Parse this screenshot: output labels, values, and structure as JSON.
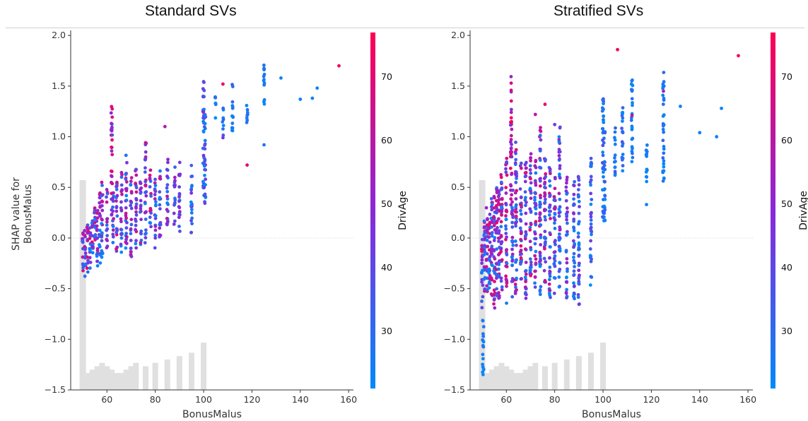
{
  "panels": [
    {
      "title": "Standard SVs"
    },
    {
      "title": "Stratified SVs"
    }
  ],
  "colors": {
    "low": "#008afb",
    "mid": "#8a28d9",
    "high": "#ff0052",
    "histogram": "#e0e0e0",
    "zero_line": "#dddddd"
  },
  "chart_data": [
    {
      "type": "scatter",
      "title": "Standard SVs",
      "xlabel": "BonusMalus",
      "ylabel": "SHAP value for\nBonusMalus",
      "xlim": [
        45,
        162
      ],
      "ylim": [
        -1.5,
        2.05
      ],
      "x_ticks": [
        60,
        80,
        100,
        120,
        140,
        160
      ],
      "y_ticks": [
        -1.5,
        -1.0,
        -0.5,
        0.0,
        0.5,
        1.0,
        1.5,
        2.0
      ],
      "colorbar": {
        "label": "DrivAge",
        "ticks": [
          30,
          40,
          50,
          60,
          70
        ],
        "range": [
          21,
          77
        ]
      },
      "histogram": {
        "x": [
          50,
          52,
          54,
          56,
          58,
          60,
          62,
          64,
          66,
          68,
          70,
          72,
          76,
          80,
          85,
          90,
          95,
          100
        ],
        "heights": [
          0.62,
          0.05,
          0.06,
          0.07,
          0.08,
          0.07,
          0.06,
          0.05,
          0.05,
          0.06,
          0.07,
          0.08,
          0.07,
          0.08,
          0.09,
          0.1,
          0.11,
          0.14
        ]
      },
      "series": [
        {
          "x": 50,
          "y_range": [
            -0.4,
            0.05
          ],
          "age_range": [
            21,
            77
          ]
        },
        {
          "x": 51,
          "y_range": [
            -0.38,
            0.1
          ],
          "age_range": [
            21,
            77
          ]
        },
        {
          "x": 52,
          "y_range": [
            -0.34,
            0.15
          ],
          "age_range": [
            21,
            77
          ]
        },
        {
          "x": 53,
          "y_range": [
            -0.3,
            0.2
          ],
          "age_range": [
            21,
            75
          ]
        },
        {
          "x": 54,
          "y_range": [
            -0.2,
            0.25
          ],
          "age_range": [
            21,
            70
          ]
        },
        {
          "x": 55,
          "y_range": [
            -0.15,
            0.3
          ],
          "age_range": [
            21,
            70
          ]
        },
        {
          "x": 56,
          "y_range": [
            -0.3,
            0.3
          ],
          "age_range": [
            21,
            68
          ]
        },
        {
          "x": 57,
          "y_range": [
            -0.25,
            0.45
          ],
          "age_range": [
            21,
            72
          ]
        },
        {
          "x": 58,
          "y_range": [
            -0.2,
            0.6
          ],
          "age_range": [
            21,
            74
          ]
        },
        {
          "x": 60,
          "y_range": [
            -0.1,
            0.5
          ],
          "age_range": [
            21,
            70
          ]
        },
        {
          "x": 62,
          "y_range": [
            0.2,
            1.3
          ],
          "age_range": [
            40,
            77
          ]
        },
        {
          "x": 62.5,
          "y_range": [
            -0.05,
            0.45
          ],
          "age_range": [
            21,
            60
          ]
        },
        {
          "x": 64,
          "y_range": [
            -0.2,
            0.6
          ],
          "age_range": [
            21,
            72
          ]
        },
        {
          "x": 66,
          "y_range": [
            -0.15,
            0.7
          ],
          "age_range": [
            21,
            74
          ]
        },
        {
          "x": 68,
          "y_range": [
            -0.1,
            0.9
          ],
          "age_range": [
            21,
            74
          ]
        },
        {
          "x": 70,
          "y_range": [
            -0.2,
            0.65
          ],
          "age_range": [
            21,
            70
          ]
        },
        {
          "x": 72,
          "y_range": [
            -0.15,
            0.7
          ],
          "age_range": [
            21,
            72
          ]
        },
        {
          "x": 74,
          "y_range": [
            -0.1,
            0.6
          ],
          "age_range": [
            21,
            70
          ]
        },
        {
          "x": 76,
          "y_range": [
            -0.05,
            1.0
          ],
          "age_range": [
            21,
            68
          ]
        },
        {
          "x": 78,
          "y_range": [
            0.1,
            0.7
          ],
          "age_range": [
            21,
            72
          ]
        },
        {
          "x": 80,
          "y_range": [
            -0.1,
            0.6
          ],
          "age_range": [
            21,
            70
          ]
        },
        {
          "x": 82,
          "y_range": [
            0.0,
            0.7
          ],
          "age_range": [
            21,
            65
          ]
        },
        {
          "x": 85,
          "y_range": [
            0.05,
            0.8
          ],
          "age_range": [
            21,
            60
          ]
        },
        {
          "x": 88,
          "y_range": [
            0.1,
            0.7
          ],
          "age_range": [
            21,
            58
          ]
        },
        {
          "x": 90,
          "y_range": [
            0.05,
            0.75
          ],
          "age_range": [
            21,
            55
          ]
        },
        {
          "x": 95,
          "y_range": [
            0.05,
            0.75
          ],
          "age_range": [
            21,
            50
          ]
        },
        {
          "x": 100,
          "y_range": [
            0.35,
            1.55
          ],
          "age_range": [
            21,
            50
          ]
        },
        {
          "x": 100.6,
          "y_range": [
            0.3,
            1.25
          ],
          "age_range": [
            21,
            45
          ]
        },
        {
          "x": 105,
          "y_range": [
            1.15,
            1.4
          ],
          "age_range": [
            21,
            35
          ]
        },
        {
          "x": 108,
          "y_range": [
            1.0,
            1.3
          ],
          "age_range": [
            21,
            35
          ]
        },
        {
          "x": 112,
          "y_range": [
            1.05,
            1.55
          ],
          "age_range": [
            21,
            35
          ]
        },
        {
          "x": 118,
          "y_range": [
            1.05,
            1.35
          ],
          "age_range": [
            21,
            30
          ]
        },
        {
          "x": 125,
          "y_range": [
            1.3,
            1.75
          ],
          "age_range": [
            21,
            30
          ]
        }
      ],
      "extras": [
        {
          "x": 156,
          "y": 1.7,
          "age": 76
        },
        {
          "x": 132,
          "y": 1.58,
          "age": 24
        },
        {
          "x": 140,
          "y": 1.37,
          "age": 24
        },
        {
          "x": 145,
          "y": 1.38,
          "age": 24
        },
        {
          "x": 147,
          "y": 1.48,
          "age": 24
        },
        {
          "x": 118,
          "y": 0.72,
          "age": 70
        },
        {
          "x": 125,
          "y": 0.92,
          "age": 28
        },
        {
          "x": 108,
          "y": 1.52,
          "age": 72
        },
        {
          "x": 84,
          "y": 1.1,
          "age": 58
        },
        {
          "x": 108,
          "y": 0.99,
          "age": 45
        }
      ]
    },
    {
      "type": "scatter",
      "title": "Stratified SVs",
      "xlabel": "BonusMalus",
      "ylabel": "",
      "xlim": [
        45,
        162
      ],
      "ylim": [
        -1.5,
        2.05
      ],
      "x_ticks": [
        60,
        80,
        100,
        120,
        140,
        160
      ],
      "y_ticks": [
        -1.5,
        -1.0,
        -0.5,
        0.0,
        0.5,
        1.0,
        1.5,
        2.0
      ],
      "colorbar": {
        "label": "DrivAge",
        "ticks": [
          30,
          40,
          50,
          60,
          70
        ],
        "range": [
          21,
          77
        ]
      },
      "histogram": {
        "x": [
          50,
          52,
          54,
          56,
          58,
          60,
          62,
          64,
          66,
          68,
          70,
          72,
          76,
          80,
          85,
          90,
          95,
          100
        ],
        "heights": [
          0.62,
          0.05,
          0.06,
          0.07,
          0.08,
          0.07,
          0.06,
          0.05,
          0.05,
          0.06,
          0.07,
          0.08,
          0.07,
          0.08,
          0.09,
          0.1,
          0.11,
          0.14
        ]
      },
      "series": [
        {
          "x": 50,
          "y_range": [
            -0.7,
            0.0
          ],
          "age_range": [
            21,
            77
          ]
        },
        {
          "x": 50.4,
          "y_range": [
            -1.35,
            -0.75
          ],
          "age_range": [
            21,
            28
          ]
        },
        {
          "x": 51,
          "y_range": [
            -0.6,
            0.25
          ],
          "age_range": [
            21,
            72
          ]
        },
        {
          "x": 52,
          "y_range": [
            -0.55,
            0.3
          ],
          "age_range": [
            21,
            70
          ]
        },
        {
          "x": 53,
          "y_range": [
            -0.5,
            0.35
          ],
          "age_range": [
            21,
            72
          ]
        },
        {
          "x": 54,
          "y_range": [
            -0.6,
            0.4
          ],
          "age_range": [
            21,
            70
          ]
        },
        {
          "x": 55,
          "y_range": [
            -0.7,
            0.45
          ],
          "age_range": [
            21,
            70
          ]
        },
        {
          "x": 56,
          "y_range": [
            -0.65,
            0.5
          ],
          "age_range": [
            21,
            72
          ]
        },
        {
          "x": 57,
          "y_range": [
            -0.7,
            0.5
          ],
          "age_range": [
            21,
            68
          ]
        },
        {
          "x": 58,
          "y_range": [
            -0.55,
            0.65
          ],
          "age_range": [
            21,
            74
          ]
        },
        {
          "x": 60,
          "y_range": [
            -0.65,
            0.8
          ],
          "age_range": [
            21,
            72
          ]
        },
        {
          "x": 62,
          "y_range": [
            0.3,
            1.62
          ],
          "age_range": [
            45,
            77
          ]
        },
        {
          "x": 62.5,
          "y_range": [
            -0.6,
            0.5
          ],
          "age_range": [
            21,
            60
          ]
        },
        {
          "x": 64,
          "y_range": [
            -0.55,
            0.95
          ],
          "age_range": [
            21,
            74
          ]
        },
        {
          "x": 66,
          "y_range": [
            -0.45,
            0.85
          ],
          "age_range": [
            21,
            74
          ]
        },
        {
          "x": 68,
          "y_range": [
            -0.6,
            0.8
          ],
          "age_range": [
            21,
            70
          ]
        },
        {
          "x": 70,
          "y_range": [
            -0.5,
            0.85
          ],
          "age_range": [
            21,
            72
          ]
        },
        {
          "x": 72,
          "y_range": [
            -0.55,
            0.8
          ],
          "age_range": [
            21,
            70
          ]
        },
        {
          "x": 74,
          "y_range": [
            -0.6,
            1.1
          ],
          "age_range": [
            21,
            70
          ]
        },
        {
          "x": 76,
          "y_range": [
            -0.5,
            0.85
          ],
          "age_range": [
            21,
            72
          ]
        },
        {
          "x": 78,
          "y_range": [
            -0.6,
            0.7
          ],
          "age_range": [
            21,
            68
          ]
        },
        {
          "x": 80,
          "y_range": [
            -0.55,
            0.65
          ],
          "age_range": [
            21,
            65
          ]
        },
        {
          "x": 82,
          "y_range": [
            -0.5,
            1.1
          ],
          "age_range": [
            21,
            60
          ]
        },
        {
          "x": 85,
          "y_range": [
            -0.6,
            0.6
          ],
          "age_range": [
            21,
            55
          ]
        },
        {
          "x": 88,
          "y_range": [
            -0.6,
            0.7
          ],
          "age_range": [
            21,
            52
          ]
        },
        {
          "x": 90,
          "y_range": [
            -0.7,
            0.65
          ],
          "age_range": [
            21,
            50
          ]
        },
        {
          "x": 95,
          "y_range": [
            -0.5,
            0.8
          ],
          "age_range": [
            21,
            45
          ]
        },
        {
          "x": 100,
          "y_range": [
            0.2,
            1.45
          ],
          "age_range": [
            21,
            40
          ]
        },
        {
          "x": 100.6,
          "y_range": [
            0.15,
            1.05
          ],
          "age_range": [
            21,
            35
          ]
        },
        {
          "x": 105,
          "y_range": [
            0.6,
            1.1
          ],
          "age_range": [
            21,
            35
          ]
        },
        {
          "x": 108,
          "y_range": [
            0.65,
            1.35
          ],
          "age_range": [
            21,
            35
          ]
        },
        {
          "x": 112,
          "y_range": [
            0.75,
            1.6
          ],
          "age_range": [
            21,
            30
          ]
        },
        {
          "x": 118,
          "y_range": [
            0.55,
            1.0
          ],
          "age_range": [
            21,
            30
          ]
        },
        {
          "x": 125,
          "y_range": [
            0.55,
            1.65
          ],
          "age_range": [
            21,
            32
          ]
        }
      ],
      "extras": [
        {
          "x": 156,
          "y": 1.8,
          "age": 76
        },
        {
          "x": 106,
          "y": 1.86,
          "age": 74
        },
        {
          "x": 132,
          "y": 1.3,
          "age": 24
        },
        {
          "x": 140,
          "y": 1.04,
          "age": 24
        },
        {
          "x": 147,
          "y": 1.0,
          "age": 24
        },
        {
          "x": 149,
          "y": 1.28,
          "age": 24
        },
        {
          "x": 118,
          "y": 0.33,
          "age": 24
        },
        {
          "x": 112,
          "y": 1.21,
          "age": 62
        },
        {
          "x": 72,
          "y": 1.22,
          "age": 60
        },
        {
          "x": 76,
          "y": 1.32,
          "age": 72
        },
        {
          "x": 80,
          "y": 1.12,
          "age": 45
        },
        {
          "x": 125,
          "y": 1.45,
          "age": 55
        }
      ]
    }
  ]
}
